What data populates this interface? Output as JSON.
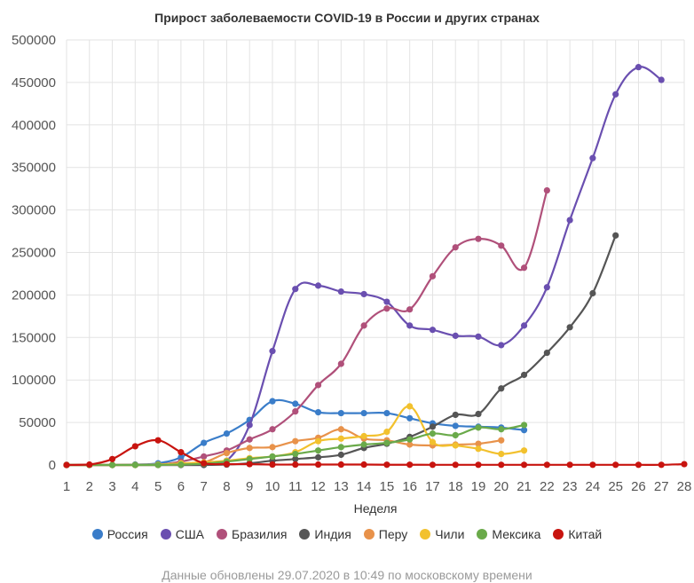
{
  "chart_data": {
    "type": "line",
    "title": "Прирост заболеваемости COVID-19 в России и других странах",
    "xlabel": "Неделя",
    "ylabel": "",
    "x": [
      1,
      2,
      3,
      4,
      5,
      6,
      7,
      8,
      9,
      10,
      11,
      12,
      13,
      14,
      15,
      16,
      17,
      18,
      19,
      20,
      21,
      22,
      23,
      24,
      25,
      26,
      27,
      28
    ],
    "ylim": [
      0,
      500000
    ],
    "yticks": [
      0,
      50000,
      100000,
      150000,
      200000,
      250000,
      300000,
      350000,
      400000,
      450000,
      500000
    ],
    "grid": true,
    "legend": "bottom",
    "series": [
      {
        "name": "Россия",
        "color": "#3a7dc9",
        "points": [
          [
            1,
            0
          ],
          [
            2,
            0
          ],
          [
            3,
            0
          ],
          [
            4,
            500
          ],
          [
            5,
            2000
          ],
          [
            6,
            9000
          ],
          [
            7,
            26000
          ],
          [
            8,
            37000
          ],
          [
            9,
            53000
          ],
          [
            10,
            75000
          ],
          [
            11,
            72000
          ],
          [
            12,
            62000
          ],
          [
            13,
            61000
          ],
          [
            14,
            61000
          ],
          [
            15,
            61000
          ],
          [
            16,
            55000
          ],
          [
            17,
            49000
          ],
          [
            18,
            46000
          ],
          [
            19,
            45000
          ],
          [
            20,
            44000
          ],
          [
            21,
            41000
          ]
        ]
      },
      {
        "name": "США",
        "color": "#6a4fb0",
        "points": [
          [
            1,
            0
          ],
          [
            2,
            0
          ],
          [
            3,
            0
          ],
          [
            4,
            0
          ],
          [
            5,
            0
          ],
          [
            6,
            0
          ],
          [
            7,
            0
          ],
          [
            8,
            5000
          ],
          [
            9,
            47000
          ],
          [
            10,
            134000
          ],
          [
            11,
            207000
          ],
          [
            12,
            211000
          ],
          [
            13,
            204000
          ],
          [
            14,
            201000
          ],
          [
            15,
            192000
          ],
          [
            16,
            164000
          ],
          [
            17,
            159000
          ],
          [
            18,
            152000
          ],
          [
            19,
            151000
          ],
          [
            20,
            141000
          ],
          [
            21,
            164000
          ],
          [
            22,
            209000
          ],
          [
            23,
            288000
          ],
          [
            24,
            361000
          ],
          [
            25,
            436000
          ],
          [
            26,
            468000
          ],
          [
            27,
            453000
          ]
        ]
      },
      {
        "name": "Бразилия",
        "color": "#b0507a",
        "points": [
          [
            1,
            0
          ],
          [
            2,
            0
          ],
          [
            3,
            0
          ],
          [
            4,
            0
          ],
          [
            5,
            500
          ],
          [
            6,
            4000
          ],
          [
            7,
            10000
          ],
          [
            8,
            17000
          ],
          [
            9,
            30000
          ],
          [
            10,
            42000
          ],
          [
            11,
            63000
          ],
          [
            12,
            94000
          ],
          [
            13,
            119000
          ],
          [
            14,
            164000
          ],
          [
            15,
            184000
          ],
          [
            16,
            183000
          ],
          [
            17,
            222000
          ],
          [
            18,
            256000
          ],
          [
            19,
            266000
          ],
          [
            20,
            258000
          ],
          [
            21,
            232000
          ],
          [
            22,
            323000
          ]
        ]
      },
      {
        "name": "Индия",
        "color": "#555555",
        "points": [
          [
            1,
            0
          ],
          [
            2,
            0
          ],
          [
            3,
            0
          ],
          [
            4,
            0
          ],
          [
            5,
            0
          ],
          [
            6,
            0
          ],
          [
            7,
            0
          ],
          [
            8,
            500
          ],
          [
            9,
            2000
          ],
          [
            10,
            5000
          ],
          [
            11,
            7000
          ],
          [
            12,
            9000
          ],
          [
            13,
            12000
          ],
          [
            14,
            20000
          ],
          [
            15,
            25000
          ],
          [
            16,
            33000
          ],
          [
            17,
            45000
          ],
          [
            18,
            59000
          ],
          [
            19,
            60000
          ],
          [
            20,
            90000
          ],
          [
            21,
            106000
          ],
          [
            22,
            132000
          ],
          [
            23,
            162000
          ],
          [
            24,
            202000
          ],
          [
            25,
            270000
          ]
        ]
      },
      {
        "name": "Перу",
        "color": "#e8924a",
        "points": [
          [
            1,
            0
          ],
          [
            2,
            0
          ],
          [
            3,
            0
          ],
          [
            4,
            0
          ],
          [
            5,
            0
          ],
          [
            6,
            500
          ],
          [
            7,
            3000
          ],
          [
            8,
            14000
          ],
          [
            9,
            20000
          ],
          [
            10,
            21000
          ],
          [
            11,
            28000
          ],
          [
            12,
            32000
          ],
          [
            13,
            42000
          ],
          [
            14,
            31000
          ],
          [
            15,
            29000
          ],
          [
            16,
            24000
          ],
          [
            17,
            23000
          ],
          [
            18,
            24000
          ],
          [
            19,
            25000
          ],
          [
            20,
            29000
          ]
        ]
      },
      {
        "name": "Чили",
        "color": "#f2c12e",
        "points": [
          [
            1,
            0
          ],
          [
            2,
            0
          ],
          [
            3,
            0
          ],
          [
            4,
            0
          ],
          [
            5,
            500
          ],
          [
            6,
            2000
          ],
          [
            7,
            3000
          ],
          [
            8,
            5000
          ],
          [
            9,
            8000
          ],
          [
            10,
            10000
          ],
          [
            11,
            15000
          ],
          [
            12,
            28000
          ],
          [
            13,
            31000
          ],
          [
            14,
            34000
          ],
          [
            15,
            39000
          ],
          [
            16,
            69000
          ],
          [
            17,
            27000
          ],
          [
            18,
            23000
          ],
          [
            19,
            19000
          ],
          [
            20,
            13000
          ],
          [
            21,
            17000
          ]
        ]
      },
      {
        "name": "Мексика",
        "color": "#6aaa4a",
        "points": [
          [
            1,
            0
          ],
          [
            2,
            0
          ],
          [
            3,
            0
          ],
          [
            4,
            0
          ],
          [
            5,
            0
          ],
          [
            6,
            500
          ],
          [
            7,
            1500
          ],
          [
            8,
            4000
          ],
          [
            9,
            7000
          ],
          [
            10,
            10000
          ],
          [
            11,
            13000
          ],
          [
            12,
            17000
          ],
          [
            13,
            21000
          ],
          [
            14,
            24000
          ],
          [
            15,
            26000
          ],
          [
            16,
            30000
          ],
          [
            17,
            37000
          ],
          [
            18,
            35000
          ],
          [
            19,
            44000
          ],
          [
            20,
            42000
          ],
          [
            21,
            47000
          ]
        ]
      },
      {
        "name": "Китай",
        "color": "#c8140f",
        "points": [
          [
            1,
            0
          ],
          [
            2,
            500
          ],
          [
            3,
            7000
          ],
          [
            4,
            22000
          ],
          [
            5,
            29000
          ],
          [
            6,
            15000
          ],
          [
            7,
            2000
          ],
          [
            8,
            1000
          ],
          [
            9,
            1000
          ],
          [
            10,
            500
          ],
          [
            11,
            500
          ],
          [
            12,
            500
          ],
          [
            13,
            500
          ],
          [
            14,
            500
          ],
          [
            15,
            300
          ],
          [
            16,
            300
          ],
          [
            17,
            200
          ],
          [
            18,
            200
          ],
          [
            19,
            200
          ],
          [
            20,
            200
          ],
          [
            21,
            200
          ],
          [
            22,
            200
          ],
          [
            23,
            200
          ],
          [
            24,
            200
          ],
          [
            25,
            200
          ],
          [
            26,
            200
          ],
          [
            27,
            200
          ],
          [
            28,
            1000
          ]
        ]
      }
    ]
  },
  "footer_note": "Данные обновлены 29.07.2020 в 10:49 по московскому времени"
}
